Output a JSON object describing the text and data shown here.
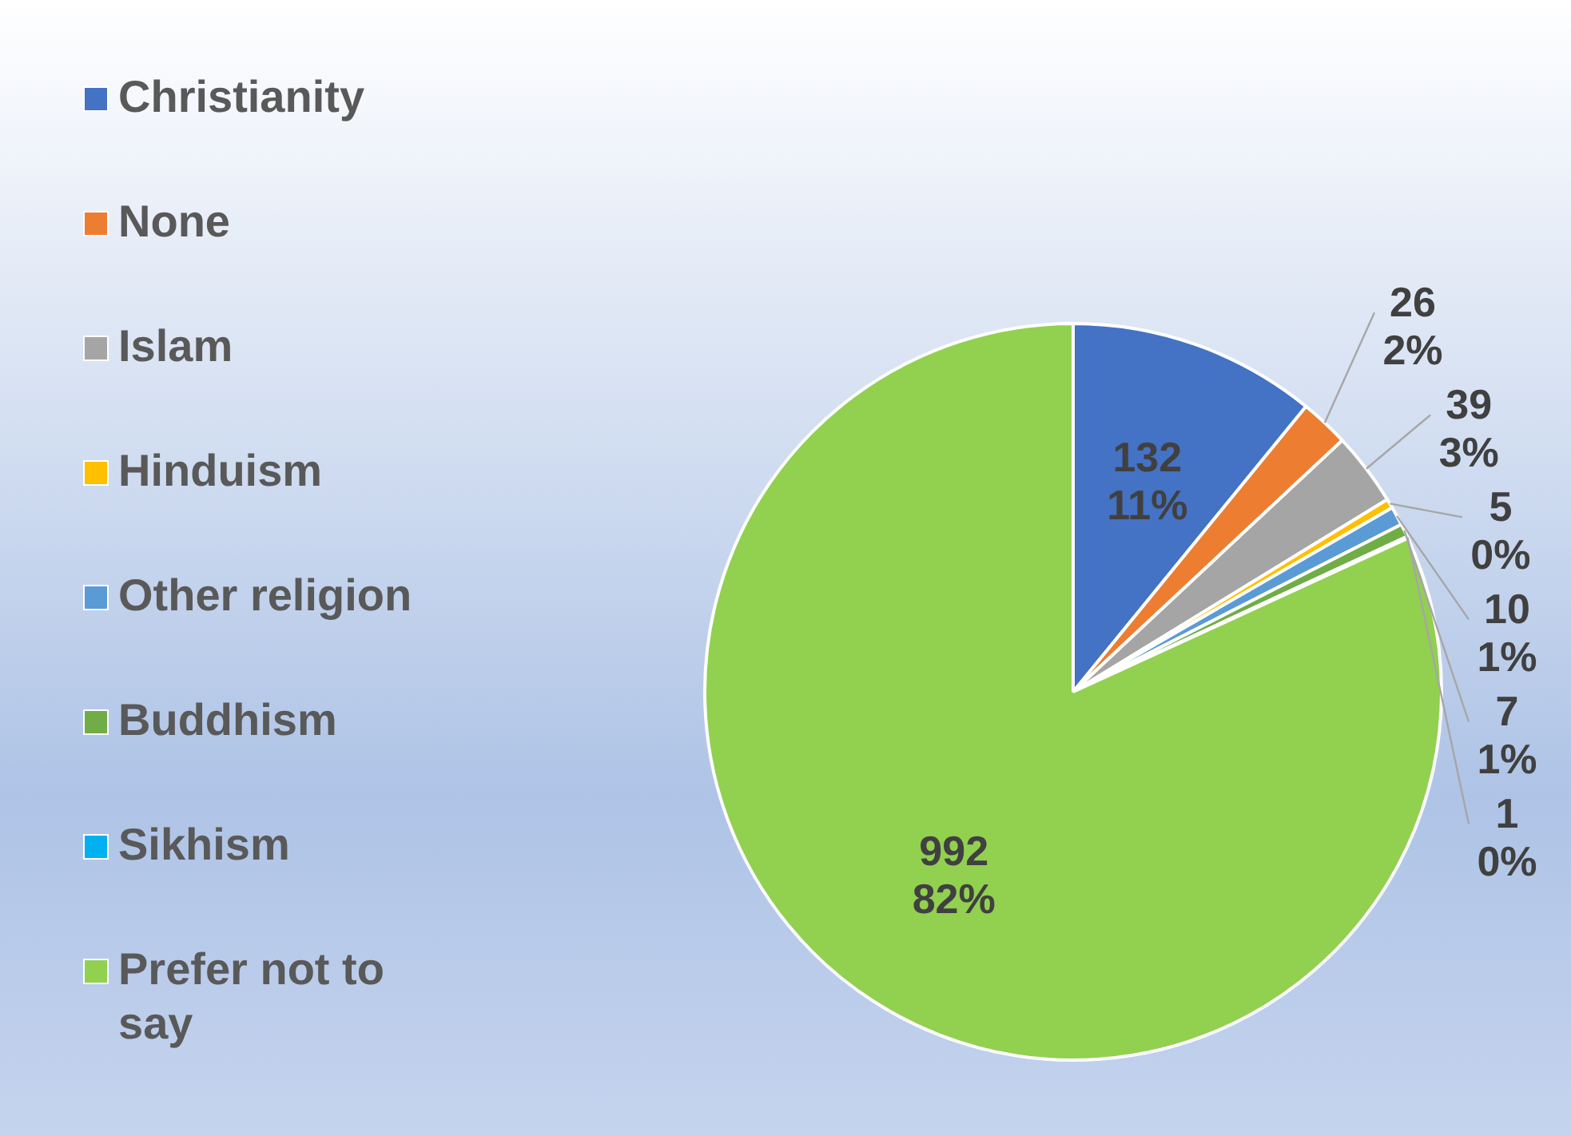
{
  "chart_data": {
    "type": "pie",
    "categories": [
      "Christianity",
      "None",
      "Islam",
      "Hinduism",
      "Other religion",
      "Buddhism",
      "Sikhism",
      "Prefer not to say"
    ],
    "values": [
      132,
      26,
      39,
      5,
      10,
      7,
      1,
      992
    ],
    "colors": [
      "#4472c4",
      "#ed7d31",
      "#a5a5a5",
      "#ffc000",
      "#5b9bd5",
      "#70ad47",
      "#00b0f0",
      "#92d050"
    ],
    "value_labels": [
      "132\n11%",
      "26\n2%",
      "39\n3%",
      "5\n0%",
      "10\n1%",
      "7\n1%",
      "1\n0%",
      "992\n82%"
    ],
    "legend": "left"
  }
}
